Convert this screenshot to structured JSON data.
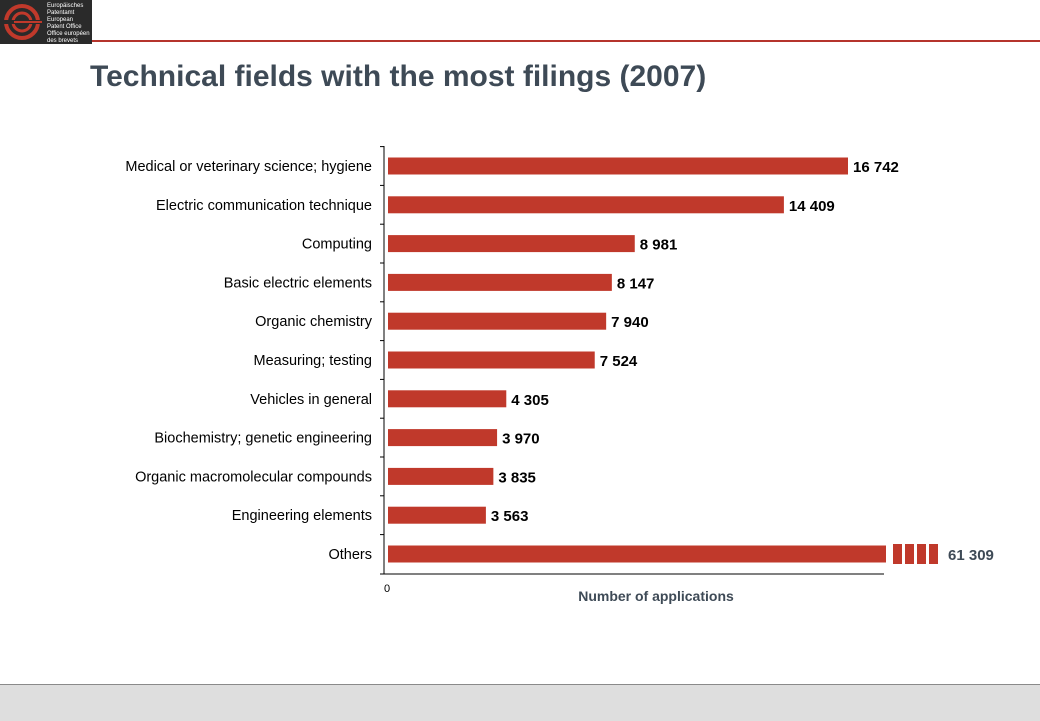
{
  "logo": {
    "lines": [
      "Europäisches",
      "Patentamt",
      "European",
      "Patent Office",
      "Office européen",
      "des brevets"
    ]
  },
  "colors": {
    "accent": "#b5342c",
    "bar": "#c0392b",
    "title": "#3e4a56",
    "footer": "#dedede"
  },
  "chart_data": {
    "type": "bar",
    "orientation": "horizontal",
    "title": "Technical fields with the most filings (2007)",
    "xlabel": "Number of applications",
    "ylabel": "",
    "x_tick_labels": [
      "0"
    ],
    "xlim": [
      0,
      18500
    ],
    "broken_axis_note": "Others bar truncated with break markers",
    "categories": [
      "Medical or veterinary science; hygiene",
      "Electric communication technique",
      "Computing",
      "Basic electric elements",
      "Organic chemistry",
      "Measuring; testing",
      "Vehicles in general",
      "Biochemistry; genetic engineering",
      "Organic macromolecular compounds",
      "Engineering elements",
      "Others"
    ],
    "values": [
      16742,
      14409,
      8981,
      8147,
      7940,
      7524,
      4305,
      3970,
      3835,
      3563,
      61309
    ],
    "data_labels": [
      "16 742",
      "14 409",
      "8 981",
      "8 147",
      "7 940",
      "7 524",
      "4 305",
      "3 970",
      "3 835",
      "3 563",
      "61 309"
    ],
    "truncated": [
      false,
      false,
      false,
      false,
      false,
      false,
      false,
      false,
      false,
      false,
      true
    ],
    "grid": false,
    "legend": "none"
  }
}
